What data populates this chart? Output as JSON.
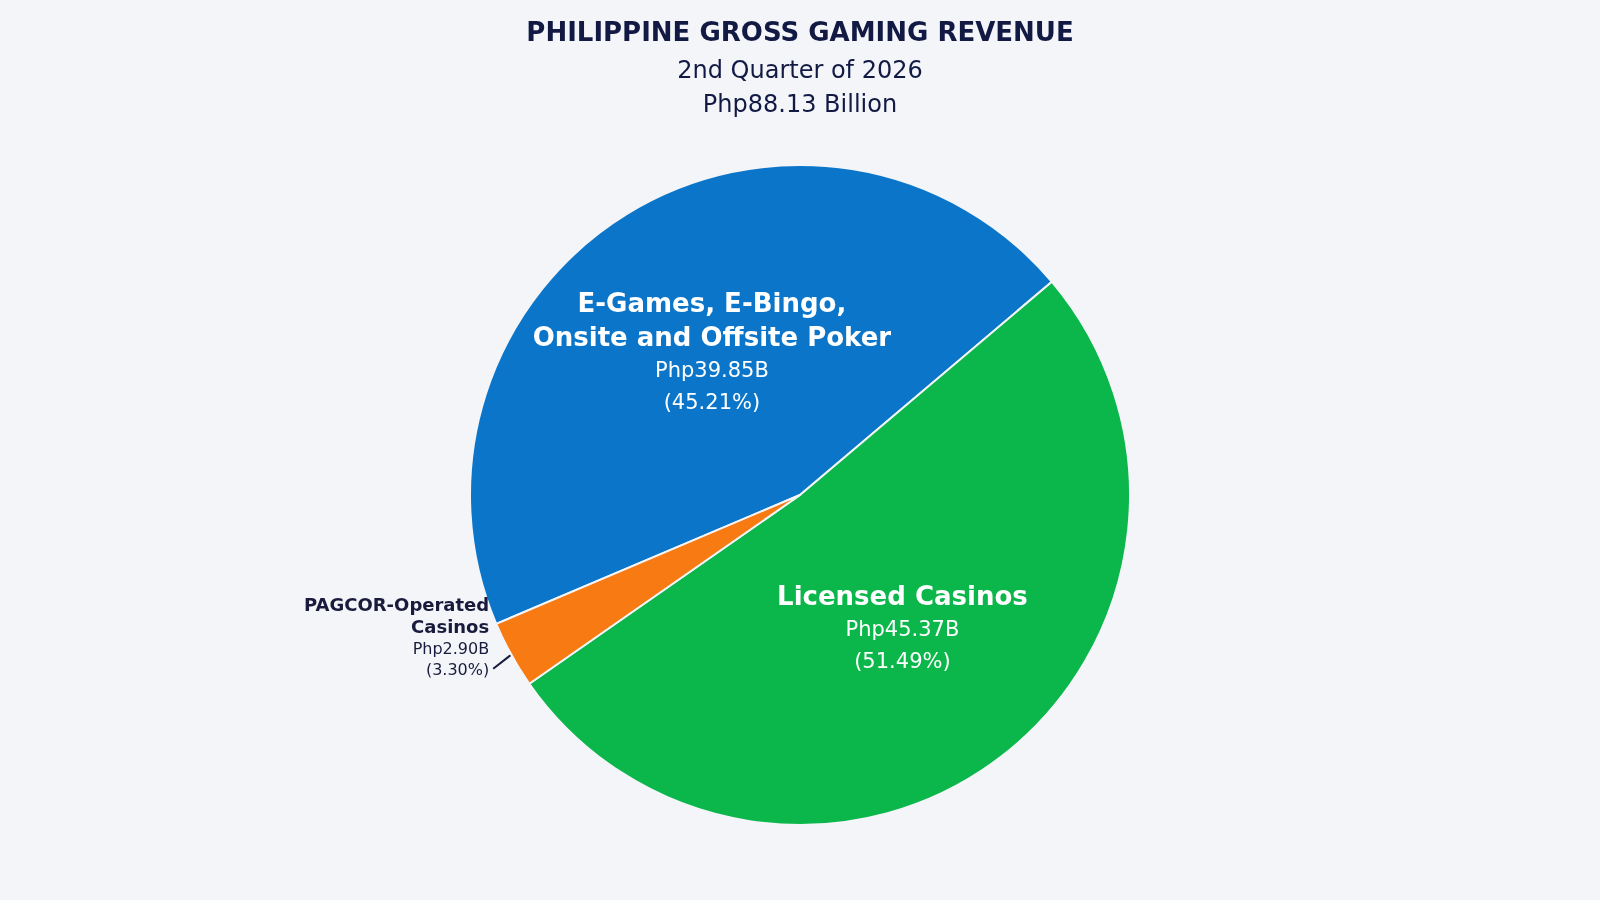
{
  "chart_data": {
    "type": "pie",
    "title": "PHILIPPINE GROSS GAMING REVENUE",
    "subtitle": "2nd Quarter of 2026 Php88.13 Billion",
    "categories": [
      "E-Games, E-Bingo, Onsite and Offsite Poker",
      "Licensed Casinos",
      "PAGCOR-Operated Casinos"
    ],
    "values": [
      45.21,
      51.49,
      3.3
    ],
    "colors": [
      "#0b76c9",
      "#0bb64a",
      "#f77a12"
    ],
    "value_labels": [
      "(45.21%)",
      "(51.49%)",
      "(3.30%)"
    ],
    "annotations": [
      {
        "text": "Php39.85B",
        "x": "E-Games, E-Bingo, Onsite and Offsite Poker"
      },
      {
        "text": "Php45.37B",
        "x": "Licensed Casinos"
      },
      {
        "text": "Php2.90B",
        "x": "PAGCOR-Operated Casinos"
      }
    ]
  }
}
